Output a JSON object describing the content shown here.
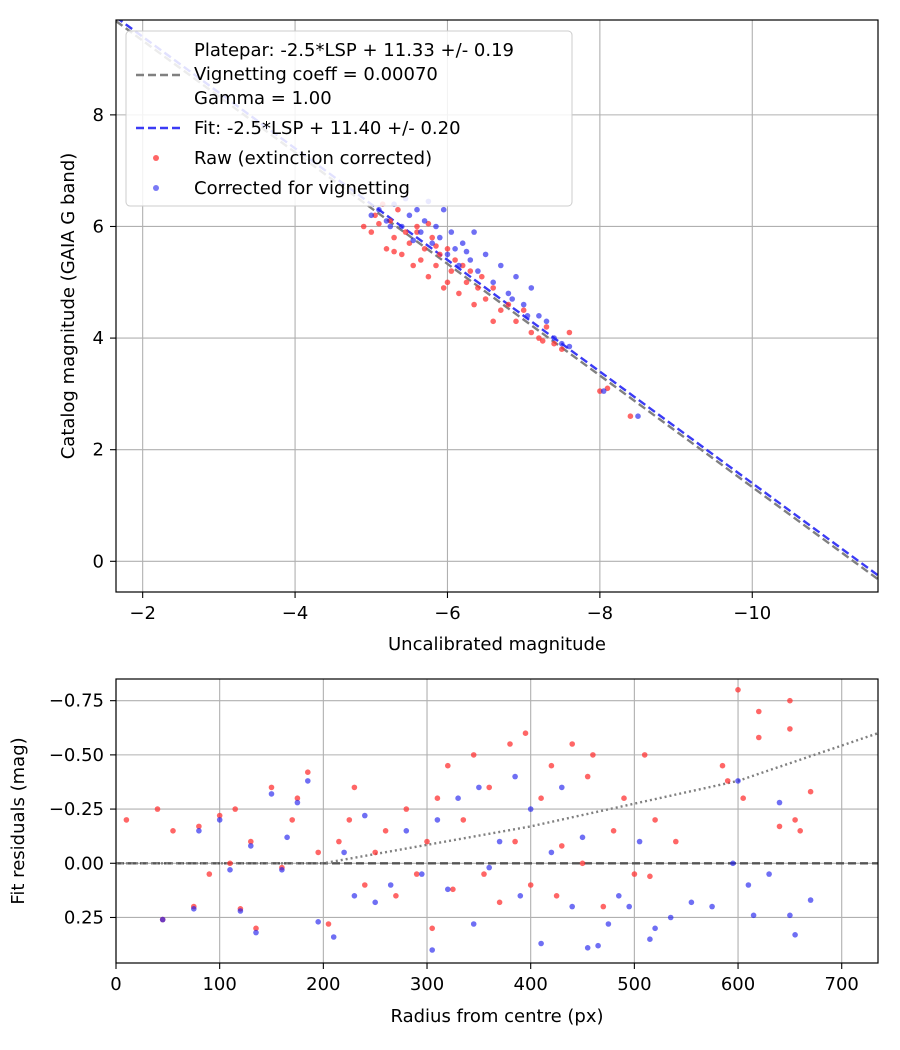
{
  "chart_data": [
    {
      "type": "scatter",
      "xlabel": "Uncalibrated magnitude",
      "ylabel": "Catalog magnitude (GAIA G band)",
      "xlim": [
        -1.65,
        -11.65
      ],
      "ylim": [
        9.7,
        -0.55
      ],
      "xticks": [
        -2,
        -4,
        -6,
        -8,
        -10
      ],
      "xtick_labels": [
        "−2",
        "−4",
        "−6",
        "−8",
        "−10"
      ],
      "yticks": [
        0,
        2,
        4,
        6,
        8
      ],
      "ytick_labels": [
        "0",
        "2",
        "4",
        "6",
        "8"
      ],
      "grid": true,
      "legend_position": "upper-left",
      "lines": [
        {
          "name": "platepar",
          "label_lines": [
            "Platepar: -2.5*LSP + 11.33 +/- 0.19",
            "Vignetting coeff = 0.00070",
            "Gamma = 1.00"
          ],
          "slope": 1,
          "intercept": 11.33,
          "color": "#808080",
          "dash": "8,4"
        },
        {
          "name": "fit",
          "label_lines": [
            "Fit: -2.5*LSP + 11.40 +/- 0.20"
          ],
          "slope": 1,
          "intercept": 11.4,
          "color": "#3b3bf5",
          "dash": "8,4"
        }
      ],
      "series": [
        {
          "name": "Raw (extinction corrected)",
          "color": "#ff3333",
          "points": [
            [
              -4.9,
              6.0
            ],
            [
              -5.0,
              5.9
            ],
            [
              -5.05,
              6.2
            ],
            [
              -5.1,
              6.05
            ],
            [
              -5.2,
              5.6
            ],
            [
              -5.25,
              6.1
            ],
            [
              -5.3,
              5.8
            ],
            [
              -5.35,
              6.3
            ],
            [
              -5.4,
              5.5
            ],
            [
              -5.45,
              5.9
            ],
            [
              -5.5,
              5.7
            ],
            [
              -5.55,
              5.3
            ],
            [
              -5.6,
              6.0
            ],
            [
              -5.65,
              5.4
            ],
            [
              -5.7,
              5.6
            ],
            [
              -5.75,
              5.1
            ],
            [
              -5.8,
              5.8
            ],
            [
              -5.85,
              5.3
            ],
            [
              -5.9,
              5.5
            ],
            [
              -5.95,
              4.9
            ],
            [
              -6.0,
              5.6
            ],
            [
              -6.05,
              5.2
            ],
            [
              -6.1,
              5.4
            ],
            [
              -6.15,
              4.8
            ],
            [
              -6.2,
              5.3
            ],
            [
              -6.25,
              5.0
            ],
            [
              -6.3,
              5.2
            ],
            [
              -6.35,
              4.6
            ],
            [
              -6.4,
              4.9
            ],
            [
              -6.5,
              4.7
            ],
            [
              -6.6,
              4.9
            ],
            [
              -6.7,
              4.5
            ],
            [
              -6.8,
              4.6
            ],
            [
              -6.9,
              4.3
            ],
            [
              -7.0,
              4.5
            ],
            [
              -7.1,
              4.1
            ],
            [
              -7.2,
              4.0
            ],
            [
              -7.3,
              4.2
            ],
            [
              -7.4,
              3.9
            ],
            [
              -7.5,
              3.8
            ],
            [
              -7.6,
              4.1
            ],
            [
              -8.0,
              3.05
            ],
            [
              -8.1,
              3.1
            ],
            [
              -8.4,
              2.6
            ],
            [
              -5.15,
              6.4
            ],
            [
              -5.6,
              5.9
            ],
            [
              -6.0,
              5.0
            ],
            [
              -6.6,
              4.3
            ],
            [
              -7.25,
              3.95
            ],
            [
              -5.3,
              5.55
            ],
            [
              -5.85,
              5.65
            ],
            [
              -6.45,
              5.1
            ],
            [
              -5.75,
              6.05
            ]
          ]
        },
        {
          "name": "Corrected for vignetting",
          "color": "#2222ee",
          "points": [
            [
              -5.0,
              6.2
            ],
            [
              -5.1,
              6.3
            ],
            [
              -5.2,
              6.1
            ],
            [
              -5.3,
              6.4
            ],
            [
              -5.4,
              6.0
            ],
            [
              -5.45,
              6.5
            ],
            [
              -5.5,
              6.2
            ],
            [
              -5.6,
              6.3
            ],
            [
              -5.65,
              5.9
            ],
            [
              -5.7,
              6.1
            ],
            [
              -5.8,
              5.7
            ],
            [
              -5.85,
              6.0
            ],
            [
              -5.9,
              5.8
            ],
            [
              -5.95,
              6.3
            ],
            [
              -6.0,
              5.5
            ],
            [
              -6.05,
              5.9
            ],
            [
              -6.1,
              5.6
            ],
            [
              -6.15,
              5.3
            ],
            [
              -6.2,
              5.7
            ],
            [
              -6.3,
              5.4
            ],
            [
              -6.35,
              5.9
            ],
            [
              -6.4,
              5.2
            ],
            [
              -6.5,
              5.5
            ],
            [
              -6.6,
              5.0
            ],
            [
              -6.7,
              5.3
            ],
            [
              -6.8,
              4.8
            ],
            [
              -6.9,
              5.1
            ],
            [
              -7.0,
              4.6
            ],
            [
              -7.1,
              4.9
            ],
            [
              -7.2,
              4.4
            ],
            [
              -7.3,
              4.3
            ],
            [
              -7.4,
              4.0
            ],
            [
              -7.5,
              3.9
            ],
            [
              -7.6,
              3.85
            ],
            [
              -8.05,
              3.05
            ],
            [
              -8.5,
              2.6
            ],
            [
              -5.25,
              6.0
            ],
            [
              -5.55,
              5.75
            ],
            [
              -6.25,
              5.55
            ],
            [
              -6.85,
              4.7
            ],
            [
              -7.05,
              4.4
            ],
            [
              -5.75,
              6.45
            ]
          ]
        }
      ]
    },
    {
      "type": "scatter",
      "xlabel": "Radius from centre (px)",
      "ylabel": "Fit residuals (mag)",
      "xlim": [
        0,
        735
      ],
      "ylim": [
        -0.85,
        0.46
      ],
      "xticks": [
        0,
        100,
        200,
        300,
        400,
        500,
        600,
        700
      ],
      "xtick_labels": [
        "0",
        "100",
        "200",
        "300",
        "400",
        "500",
        "600",
        "700"
      ],
      "yticks": [
        0.25,
        0.0,
        -0.25,
        -0.5,
        -0.75
      ],
      "ytick_labels": [
        "0.25",
        "0.00",
        "−0.25",
        "−0.50",
        "−0.75"
      ],
      "grid": true,
      "lines": [
        {
          "name": "zero",
          "points": [
            [
              0,
              0
            ],
            [
              735,
              0
            ]
          ],
          "color": "#555555",
          "dash": "8,4"
        },
        {
          "name": "vignetting-trend",
          "points": [
            [
              0,
              0
            ],
            [
              200,
              0
            ],
            [
              400,
              -0.17
            ],
            [
              600,
              -0.38
            ],
            [
              735,
              -0.6
            ]
          ],
          "color": "#808080",
          "dash": "2,3"
        }
      ],
      "series": [
        {
          "name": "Raw (extinction corrected)",
          "color": "#ff3333",
          "points": [
            [
              10,
              -0.2
            ],
            [
              40,
              -0.25
            ],
            [
              45,
              0.26
            ],
            [
              55,
              -0.15
            ],
            [
              75,
              0.2
            ],
            [
              80,
              -0.17
            ],
            [
              90,
              0.05
            ],
            [
              100,
              -0.22
            ],
            [
              110,
              0.0
            ],
            [
              115,
              -0.25
            ],
            [
              120,
              0.21
            ],
            [
              130,
              -0.1
            ],
            [
              135,
              0.3
            ],
            [
              150,
              -0.35
            ],
            [
              160,
              0.02
            ],
            [
              170,
              -0.2
            ],
            [
              175,
              -0.3
            ],
            [
              185,
              -0.42
            ],
            [
              195,
              -0.05
            ],
            [
              205,
              0.28
            ],
            [
              215,
              -0.1
            ],
            [
              225,
              -0.2
            ],
            [
              230,
              -0.35
            ],
            [
              240,
              0.1
            ],
            [
              250,
              -0.05
            ],
            [
              260,
              -0.15
            ],
            [
              270,
              0.15
            ],
            [
              280,
              -0.25
            ],
            [
              290,
              0.05
            ],
            [
              300,
              -0.1
            ],
            [
              305,
              0.3
            ],
            [
              310,
              -0.3
            ],
            [
              320,
              -0.45
            ],
            [
              325,
              0.12
            ],
            [
              335,
              -0.2
            ],
            [
              345,
              -0.5
            ],
            [
              355,
              0.05
            ],
            [
              360,
              -0.35
            ],
            [
              370,
              0.18
            ],
            [
              380,
              -0.55
            ],
            [
              385,
              -0.1
            ],
            [
              395,
              -0.6
            ],
            [
              400,
              0.1
            ],
            [
              410,
              -0.3
            ],
            [
              420,
              -0.45
            ],
            [
              425,
              0.15
            ],
            [
              430,
              -0.08
            ],
            [
              440,
              -0.55
            ],
            [
              450,
              0.0
            ],
            [
              455,
              -0.4
            ],
            [
              460,
              -0.5
            ],
            [
              470,
              0.2
            ],
            [
              480,
              -0.15
            ],
            [
              490,
              -0.3
            ],
            [
              500,
              0.05
            ],
            [
              510,
              -0.5
            ],
            [
              515,
              0.06
            ],
            [
              520,
              -0.2
            ],
            [
              540,
              -0.1
            ],
            [
              585,
              -0.45
            ],
            [
              590,
              -0.38
            ],
            [
              600,
              -0.8
            ],
            [
              605,
              -0.3
            ],
            [
              620,
              -0.58
            ],
            [
              620,
              -0.7
            ],
            [
              640,
              -0.17
            ],
            [
              650,
              -0.62
            ],
            [
              650,
              -0.75
            ],
            [
              655,
              -0.2
            ],
            [
              660,
              -0.15
            ],
            [
              670,
              -0.33
            ]
          ]
        },
        {
          "name": "Corrected for vignetting",
          "color": "#2222ee",
          "points": [
            [
              45,
              0.26
            ],
            [
              75,
              0.21
            ],
            [
              80,
              -0.15
            ],
            [
              100,
              -0.2
            ],
            [
              110,
              0.03
            ],
            [
              120,
              0.22
            ],
            [
              130,
              -0.08
            ],
            [
              135,
              0.32
            ],
            [
              150,
              -0.32
            ],
            [
              160,
              0.03
            ],
            [
              165,
              -0.12
            ],
            [
              175,
              -0.28
            ],
            [
              185,
              -0.38
            ],
            [
              195,
              0.27
            ],
            [
              210,
              0.34
            ],
            [
              220,
              -0.05
            ],
            [
              230,
              0.15
            ],
            [
              240,
              -0.22
            ],
            [
              250,
              0.18
            ],
            [
              265,
              0.1
            ],
            [
              280,
              -0.15
            ],
            [
              295,
              0.05
            ],
            [
              305,
              0.4
            ],
            [
              310,
              -0.2
            ],
            [
              320,
              0.12
            ],
            [
              330,
              -0.3
            ],
            [
              345,
              0.28
            ],
            [
              350,
              -0.35
            ],
            [
              360,
              0.02
            ],
            [
              370,
              -0.1
            ],
            [
              385,
              -0.4
            ],
            [
              390,
              0.15
            ],
            [
              400,
              -0.25
            ],
            [
              410,
              0.37
            ],
            [
              420,
              -0.05
            ],
            [
              430,
              -0.35
            ],
            [
              440,
              0.2
            ],
            [
              450,
              -0.12
            ],
            [
              455,
              0.39
            ],
            [
              465,
              0.38
            ],
            [
              475,
              0.28
            ],
            [
              485,
              0.15
            ],
            [
              495,
              0.2
            ],
            [
              505,
              -0.1
            ],
            [
              515,
              0.35
            ],
            [
              520,
              0.3
            ],
            [
              535,
              0.25
            ],
            [
              555,
              0.18
            ],
            [
              575,
              0.2
            ],
            [
              595,
              0.0
            ],
            [
              600,
              -0.38
            ],
            [
              610,
              0.1
            ],
            [
              615,
              0.24
            ],
            [
              630,
              0.05
            ],
            [
              650,
              0.24
            ],
            [
              655,
              0.33
            ],
            [
              670,
              0.17
            ],
            [
              640,
              -0.28
            ]
          ]
        }
      ]
    }
  ]
}
